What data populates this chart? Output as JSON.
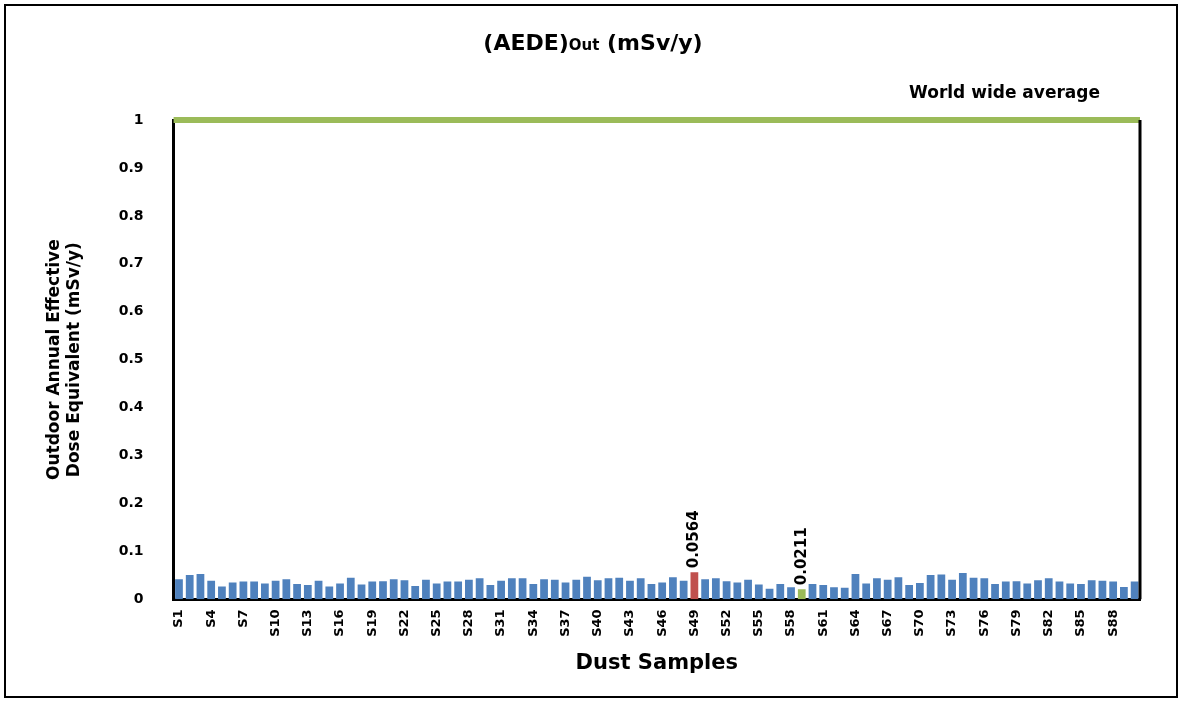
{
  "chart_data": {
    "type": "bar",
    "title": "(AEDE)$_{Out}$ (mSv/y)",
    "xlabel": "Dust Samples",
    "ylabel": "Outdoor Annual Effective Dose Equivalent (mSv/y)",
    "categories": [
      "S1",
      null,
      null,
      "S4",
      null,
      null,
      "S7",
      null,
      null,
      "S10",
      null,
      null,
      "S13",
      null,
      null,
      "S16",
      null,
      null,
      "S19",
      null,
      null,
      "S22",
      null,
      null,
      "S25",
      null,
      null,
      "S28",
      null,
      null,
      "S31",
      null,
      null,
      "S34",
      null,
      null,
      "S37",
      null,
      null,
      "S40",
      null,
      null,
      "S43",
      null,
      null,
      "S46",
      null,
      null,
      "S49",
      null,
      null,
      "S52",
      null,
      null,
      "S55",
      null,
      null,
      "S58",
      null,
      null,
      "S61",
      null,
      null,
      "S64",
      null,
      null,
      "S67",
      null,
      null,
      "S70",
      null,
      null,
      "S73",
      null,
      null,
      "S76",
      null,
      null,
      "S79",
      null,
      null,
      "S82",
      null,
      null,
      "S85",
      null,
      null,
      "S88",
      null,
      null
    ],
    "values": [
      0.042,
      0.051,
      0.053,
      0.039,
      0.027,
      0.035,
      0.037,
      0.037,
      0.033,
      0.039,
      0.042,
      0.032,
      0.03,
      0.039,
      0.027,
      0.033,
      0.045,
      0.031,
      0.037,
      0.038,
      0.042,
      0.04,
      0.028,
      0.041,
      0.033,
      0.037,
      0.037,
      0.041,
      0.044,
      0.03,
      0.039,
      0.044,
      0.044,
      0.032,
      0.042,
      0.041,
      0.035,
      0.041,
      0.047,
      0.04,
      0.044,
      0.045,
      0.039,
      0.044,
      0.032,
      0.035,
      0.046,
      0.039,
      0.0564,
      0.042,
      0.044,
      0.038,
      0.035,
      0.041,
      0.031,
      0.022,
      0.032,
      0.025,
      0.0211,
      0.032,
      0.03,
      0.025,
      0.024,
      0.053,
      0.033,
      0.044,
      0.041,
      0.046,
      0.03,
      0.034,
      0.051,
      0.052,
      0.041,
      0.055,
      0.045,
      0.044,
      0.032,
      0.037,
      0.038,
      0.033,
      0.04,
      0.044,
      0.037,
      0.033,
      0.032,
      0.04,
      0.039,
      0.037,
      0.026,
      0.037
    ],
    "colors": [
      "#4f81bd",
      "#4f81bd",
      "#4f81bd",
      "#4f81bd",
      "#4f81bd",
      "#4f81bd",
      "#4f81bd",
      "#4f81bd",
      "#4f81bd",
      "#4f81bd",
      "#4f81bd",
      "#4f81bd",
      "#4f81bd",
      "#4f81bd",
      "#4f81bd",
      "#4f81bd",
      "#4f81bd",
      "#4f81bd",
      "#4f81bd",
      "#4f81bd",
      "#4f81bd",
      "#4f81bd",
      "#4f81bd",
      "#4f81bd",
      "#4f81bd",
      "#4f81bd",
      "#4f81bd",
      "#4f81bd",
      "#4f81bd",
      "#4f81bd",
      "#4f81bd",
      "#4f81bd",
      "#4f81bd",
      "#4f81bd",
      "#4f81bd",
      "#4f81bd",
      "#4f81bd",
      "#4f81bd",
      "#4f81bd",
      "#4f81bd",
      "#4f81bd",
      "#4f81bd",
      "#4f81bd",
      "#4f81bd",
      "#4f81bd",
      "#4f81bd",
      "#4f81bd",
      "#4f81bd",
      "#c0504d",
      "#4f81bd",
      "#4f81bd",
      "#4f81bd",
      "#4f81bd",
      "#4f81bd",
      "#4f81bd",
      "#4f81bd",
      "#4f81bd",
      "#4f81bd",
      "#9bbb59",
      "#4f81bd",
      "#4f81bd",
      "#4f81bd",
      "#4f81bd",
      "#4f81bd",
      "#4f81bd",
      "#4f81bd",
      "#4f81bd",
      "#4f81bd",
      "#4f81bd",
      "#4f81bd",
      "#4f81bd",
      "#4f81bd",
      "#4f81bd",
      "#4f81bd",
      "#4f81bd",
      "#4f81bd",
      "#4f81bd",
      "#4f81bd",
      "#4f81bd",
      "#4f81bd",
      "#4f81bd",
      "#4f81bd",
      "#4f81bd",
      "#4f81bd",
      "#4f81bd",
      "#4f81bd",
      "#4f81bd",
      "#4f81bd",
      "#4f81bd",
      "#4f81bd"
    ],
    "value_labels": [
      null,
      null,
      null,
      null,
      null,
      null,
      null,
      null,
      null,
      null,
      null,
      null,
      null,
      null,
      null,
      null,
      null,
      null,
      null,
      null,
      null,
      null,
      null,
      null,
      null,
      null,
      null,
      null,
      null,
      null,
      null,
      null,
      null,
      null,
      null,
      null,
      null,
      null,
      null,
      null,
      null,
      null,
      null,
      null,
      null,
      null,
      null,
      null,
      "0.0564",
      null,
      null,
      null,
      null,
      null,
      null,
      null,
      null,
      null,
      "0.0211",
      null,
      null,
      null,
      null,
      null,
      null,
      null,
      null,
      null,
      null,
      null,
      null,
      null,
      null,
      null,
      null,
      null,
      null,
      null,
      null,
      null,
      null,
      null,
      null,
      null,
      null,
      null,
      null,
      null,
      null,
      null
    ],
    "ylim": [
      0,
      1
    ],
    "yticks": [
      0,
      0.1,
      0.2,
      0.3,
      0.4,
      0.5,
      0.6,
      0.7,
      0.8,
      0.9,
      1
    ],
    "ref_lines": [
      {
        "axis": "y",
        "value": 1,
        "label": "World wide average",
        "color": "#9bbb59"
      }
    ]
  }
}
